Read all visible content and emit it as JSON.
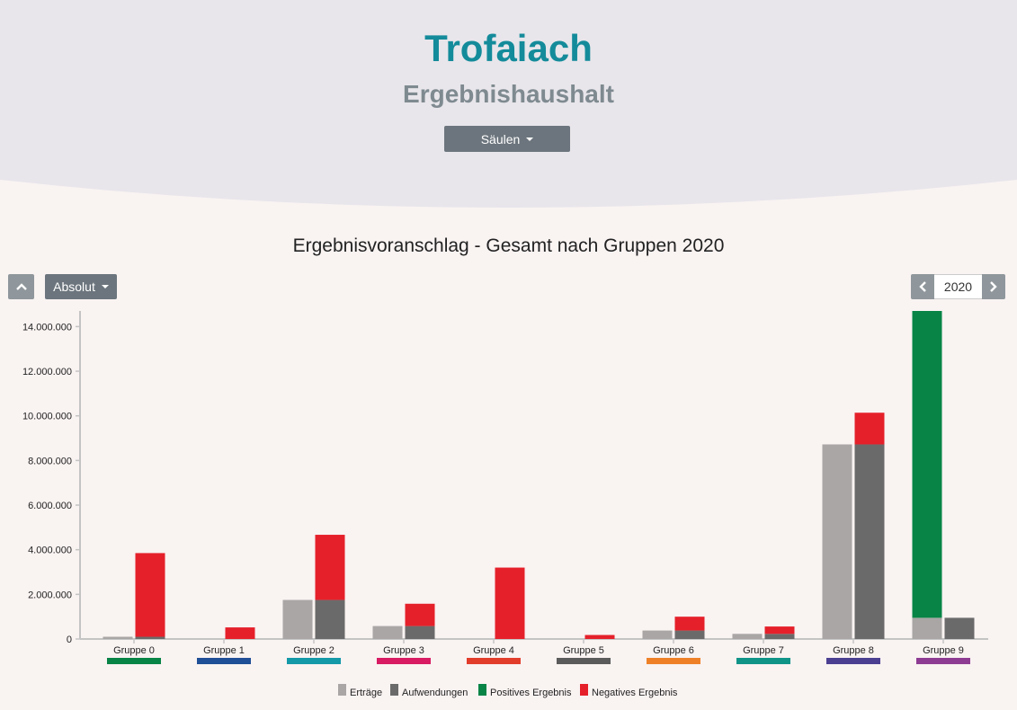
{
  "header": {
    "title": "Trofaiach",
    "subtitle": "Ergebnishaushalt",
    "chart_type_label": "Säulen"
  },
  "controls": {
    "collapse_icon": "chevron-up-icon",
    "mode_label": "Absolut",
    "year": "2020",
    "prev_icon": "chevron-left-icon",
    "next_icon": "chevron-right-icon"
  },
  "colors": {
    "ertraege": "#a9a6a5",
    "aufwendungen": "#6b6a6a",
    "positiv": "#078446",
    "negativ": "#e5202a",
    "header_bg": "#e8e6eb",
    "title": "#148b9a"
  },
  "chart_data": {
    "type": "bar",
    "title": "Ergebnisvoranschlag - Gesamt nach Gruppen 2020",
    "xlabel": "",
    "ylabel": "",
    "ylim": [
      0,
      14700000
    ],
    "yticks": [
      0,
      2000000,
      4000000,
      6000000,
      8000000,
      10000000,
      12000000,
      14000000
    ],
    "ytick_labels": [
      "0",
      "2.000.000",
      "4.000.000",
      "6.000.000",
      "8.000.000",
      "10.000.000",
      "12.000.000",
      "14.000.000"
    ],
    "categories": [
      "Gruppe 0",
      "Gruppe 1",
      "Gruppe 2",
      "Gruppe 3",
      "Gruppe 4",
      "Gruppe 5",
      "Gruppe 6",
      "Gruppe 7",
      "Gruppe 8",
      "Gruppe 9"
    ],
    "category_colors": [
      "#078446",
      "#1f4f96",
      "#1499a8",
      "#d81b62",
      "#e23d2b",
      "#5b5b5b",
      "#ee8128",
      "#119488",
      "#4b3f92",
      "#8e3c93"
    ],
    "series": [
      {
        "name": "Erträge",
        "values": [
          100000,
          0,
          1750000,
          580000,
          0,
          0,
          380000,
          230000,
          8720000,
          950000
        ]
      },
      {
        "name": "Aufwendungen",
        "values": [
          100000,
          0,
          1750000,
          580000,
          0,
          0,
          380000,
          230000,
          8720000,
          950000
        ]
      },
      {
        "name": "Positives Ergebnis",
        "values": [
          0,
          0,
          0,
          0,
          0,
          0,
          0,
          0,
          0,
          13750000
        ]
      },
      {
        "name": "Negatives Ergebnis",
        "values": [
          3750000,
          520000,
          2920000,
          1000000,
          3200000,
          180000,
          620000,
          330000,
          1420000,
          0
        ]
      }
    ],
    "legend": [
      "Erträge",
      "Aufwendungen",
      "Positives Ergebnis",
      "Negatives Ergebnis"
    ],
    "legend_position": "bottom"
  }
}
